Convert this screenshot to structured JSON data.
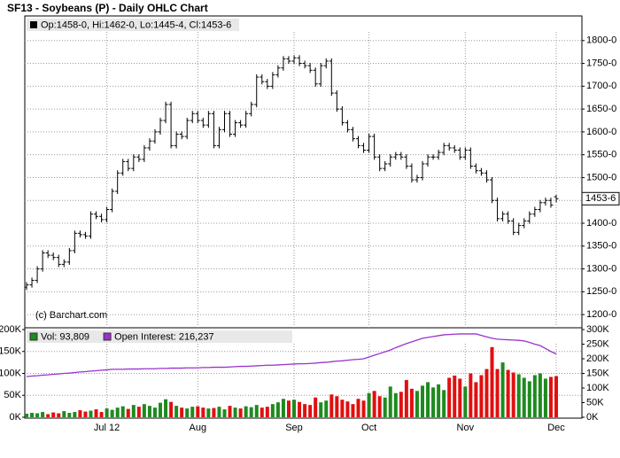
{
  "chart_data": [
    {
      "type": "ohlc",
      "title": "SF13 - Soybeans (P) - Daily OHLC Chart",
      "ohlc_label": "Op:1458-0, Hi:1462-0, Lo:1445-4, Cl:1453-6",
      "watermark": "(c) Barchart.com",
      "color": "#000000",
      "grid": true,
      "ylim": [
        1175,
        1850
      ],
      "yticks": [
        {
          "value": 1200,
          "label": "1200-0"
        },
        {
          "value": 1250,
          "label": "1250-0"
        },
        {
          "value": 1300,
          "label": "1300-0"
        },
        {
          "value": 1350,
          "label": "1350-0"
        },
        {
          "value": 1400,
          "label": "1400-0"
        },
        {
          "value": 1450,
          "label": "1450-0"
        },
        {
          "value": 1500,
          "label": "1500-0"
        },
        {
          "value": 1550,
          "label": "1550-0"
        },
        {
          "value": 1600,
          "label": "1600-0"
        },
        {
          "value": 1650,
          "label": "1650-0"
        },
        {
          "value": 1700,
          "label": "1700-0"
        },
        {
          "value": 1750,
          "label": "1750-0"
        },
        {
          "value": 1800,
          "label": "1800-0"
        }
      ],
      "last_tick": {
        "value": 1453.75,
        "label": "1453-6"
      },
      "open": [
        1260,
        1265,
        1275,
        1300,
        1335,
        1330,
        1325,
        1310,
        1315,
        1340,
        1378,
        1375,
        1372,
        1420,
        1415,
        1408,
        1430,
        1470,
        1510,
        1535,
        1520,
        1545,
        1540,
        1565,
        1580,
        1600,
        1625,
        1660,
        1570,
        1595,
        1590,
        1625,
        1640,
        1625,
        1615,
        1640,
        1570,
        1605,
        1640,
        1595,
        1620,
        1615,
        1640,
        1660,
        1720,
        1710,
        1700,
        1725,
        1740,
        1760,
        1755,
        1762,
        1750,
        1745,
        1735,
        1705,
        1745,
        1755,
        1685,
        1650,
        1620,
        1605,
        1585,
        1570,
        1560,
        1590,
        1545,
        1520,
        1530,
        1545,
        1550,
        1545,
        1525,
        1495,
        1500,
        1530,
        1545,
        1545,
        1555,
        1570,
        1565,
        1560,
        1545,
        1560,
        1525,
        1515,
        1510,
        1495,
        1450,
        1410,
        1420,
        1405,
        1380,
        1395,
        1405,
        1420,
        1430,
        1445,
        1450,
        1458
      ],
      "high": [
        1271,
        1281,
        1306,
        1341,
        1341,
        1336,
        1331,
        1321,
        1346,
        1384,
        1384,
        1381,
        1426,
        1426,
        1421,
        1436,
        1476,
        1516,
        1541,
        1541,
        1551,
        1551,
        1571,
        1586,
        1606,
        1631,
        1666,
        1666,
        1601,
        1601,
        1631,
        1646,
        1646,
        1631,
        1646,
        1646,
        1611,
        1646,
        1646,
        1626,
        1626,
        1646,
        1666,
        1726,
        1726,
        1716,
        1731,
        1746,
        1766,
        1766,
        1768,
        1768,
        1756,
        1751,
        1741,
        1751,
        1761,
        1761,
        1691,
        1656,
        1626,
        1611,
        1591,
        1576,
        1596,
        1596,
        1551,
        1536,
        1551,
        1556,
        1556,
        1551,
        1531,
        1506,
        1536,
        1551,
        1551,
        1561,
        1576,
        1576,
        1571,
        1566,
        1566,
        1566,
        1531,
        1521,
        1516,
        1501,
        1456,
        1426,
        1426,
        1411,
        1401,
        1411,
        1426,
        1436,
        1451,
        1456,
        1456,
        1462
      ],
      "low": [
        1254,
        1259,
        1269,
        1294,
        1324,
        1319,
        1304,
        1304,
        1309,
        1334,
        1369,
        1366,
        1366,
        1409,
        1402,
        1402,
        1424,
        1464,
        1504,
        1514,
        1514,
        1534,
        1534,
        1559,
        1574,
        1594,
        1619,
        1564,
        1564,
        1584,
        1584,
        1619,
        1619,
        1609,
        1609,
        1564,
        1564,
        1599,
        1589,
        1589,
        1609,
        1609,
        1634,
        1654,
        1704,
        1694,
        1694,
        1719,
        1734,
        1749,
        1749,
        1744,
        1739,
        1729,
        1699,
        1699,
        1739,
        1679,
        1644,
        1614,
        1599,
        1579,
        1564,
        1554,
        1554,
        1539,
        1514,
        1514,
        1524,
        1539,
        1539,
        1519,
        1489,
        1489,
        1494,
        1524,
        1539,
        1539,
        1549,
        1559,
        1554,
        1539,
        1539,
        1519,
        1509,
        1504,
        1489,
        1444,
        1404,
        1404,
        1399,
        1374,
        1374,
        1389,
        1399,
        1414,
        1424,
        1439,
        1434,
        1445.5
      ],
      "close": [
        1265,
        1275,
        1300,
        1335,
        1330,
        1325,
        1310,
        1315,
        1340,
        1378,
        1375,
        1372,
        1420,
        1415,
        1408,
        1430,
        1470,
        1510,
        1535,
        1520,
        1545,
        1540,
        1565,
        1580,
        1600,
        1625,
        1660,
        1570,
        1595,
        1590,
        1625,
        1640,
        1625,
        1615,
        1640,
        1570,
        1605,
        1640,
        1595,
        1620,
        1615,
        1640,
        1660,
        1720,
        1710,
        1700,
        1725,
        1740,
        1760,
        1755,
        1762,
        1750,
        1745,
        1735,
        1705,
        1745,
        1755,
        1685,
        1650,
        1620,
        1605,
        1585,
        1570,
        1560,
        1590,
        1545,
        1520,
        1530,
        1545,
        1550,
        1545,
        1525,
        1495,
        1500,
        1530,
        1545,
        1545,
        1555,
        1570,
        1565,
        1560,
        1545,
        1560,
        1525,
        1515,
        1510,
        1495,
        1450,
        1410,
        1420,
        1405,
        1380,
        1395,
        1405,
        1420,
        1430,
        1445,
        1450,
        1440,
        1453.75
      ]
    },
    {
      "type": "bar",
      "grid": true,
      "up_color": "#1f8a1f",
      "down_color": "#e01010",
      "categories": [
        null,
        null,
        null,
        null,
        null,
        null,
        null,
        null,
        null,
        null,
        null,
        null,
        null,
        null,
        null,
        "Jul 12",
        null,
        null,
        null,
        null,
        null,
        null,
        null,
        null,
        null,
        null,
        null,
        null,
        null,
        null,
        null,
        null,
        "Aug",
        null,
        null,
        null,
        null,
        null,
        null,
        null,
        null,
        null,
        null,
        null,
        null,
        null,
        null,
        null,
        null,
        null,
        "Sep",
        null,
        null,
        null,
        null,
        null,
        null,
        null,
        null,
        null,
        null,
        null,
        null,
        null,
        "Oct",
        null,
        null,
        null,
        null,
        null,
        null,
        null,
        null,
        null,
        null,
        null,
        null,
        null,
        null,
        null,
        null,
        null,
        "Nov",
        null,
        null,
        null,
        null,
        null,
        null,
        null,
        null,
        null,
        null,
        null,
        null,
        null,
        null,
        null,
        null,
        "Dec"
      ],
      "ylim": [
        0,
        200
      ],
      "yticks": [
        {
          "value": 0,
          "label": "0K"
        },
        {
          "value": 50,
          "label": "50K"
        },
        {
          "value": 100,
          "label": "100K"
        },
        {
          "value": 150,
          "label": "150K"
        },
        {
          "value": 200,
          "label": "200K"
        }
      ],
      "y2lim": [
        0,
        300
      ],
      "y2ticks": [
        {
          "value": 0,
          "label": "0K"
        },
        {
          "value": 50,
          "label": "50K"
        },
        {
          "value": 100,
          "label": "100K"
        },
        {
          "value": 150,
          "label": "150K"
        },
        {
          "value": 200,
          "label": "200K"
        },
        {
          "value": 250,
          "label": "250K"
        },
        {
          "value": 300,
          "label": "300K"
        }
      ],
      "series": [
        {
          "name": "Vol: 93,809",
          "color": "#1f8a1f",
          "axis": "y",
          "values": [
            8,
            10,
            9,
            12,
            7,
            11,
            9,
            14,
            10,
            12,
            16,
            13,
            15,
            18,
            12,
            20,
            17,
            22,
            25,
            19,
            28,
            24,
            30,
            26,
            22,
            33,
            41,
            35,
            26,
            22,
            20,
            24,
            25,
            22,
            20,
            21,
            24,
            18,
            26,
            22,
            20,
            25,
            23,
            28,
            22,
            24,
            30,
            34,
            42,
            38,
            40,
            35,
            30,
            28,
            45,
            34,
            38,
            52,
            48,
            40,
            36,
            30,
            42,
            38,
            55,
            60,
            48,
            45,
            70,
            55,
            58,
            85,
            65,
            60,
            72,
            80,
            68,
            75,
            62,
            90,
            95,
            88,
            70,
            100,
            80,
            96,
            110,
            160,
            110,
            125,
            108,
            102,
            98,
            90,
            82,
            96,
            100,
            88,
            92,
            93.809
          ]
        },
        {
          "name": "Open Interest: 216,237",
          "color": "#9a32cd",
          "axis": "y2",
          "values": [
            139,
            141,
            142,
            144,
            145,
            147,
            148,
            150,
            151,
            153,
            155,
            156,
            158,
            159,
            161,
            162,
            164,
            164,
            164,
            165,
            165,
            165,
            166,
            166,
            166,
            167,
            167,
            168,
            168,
            168,
            169,
            169,
            169,
            170,
            170,
            171,
            171,
            171,
            172,
            173,
            174,
            174,
            175,
            176,
            177,
            178,
            178,
            179,
            180,
            181,
            182,
            183,
            183,
            184,
            185,
            187,
            188,
            190,
            192,
            193,
            195,
            197,
            198,
            200,
            206,
            212,
            218,
            224,
            230,
            238,
            245,
            252,
            258,
            264,
            270,
            273,
            276,
            279,
            282,
            283,
            284,
            285,
            285,
            285,
            285,
            280,
            275,
            270,
            267,
            266,
            265,
            264,
            263,
            261,
            256,
            250,
            245,
            235,
            225,
            216.237
          ]
        }
      ]
    }
  ]
}
